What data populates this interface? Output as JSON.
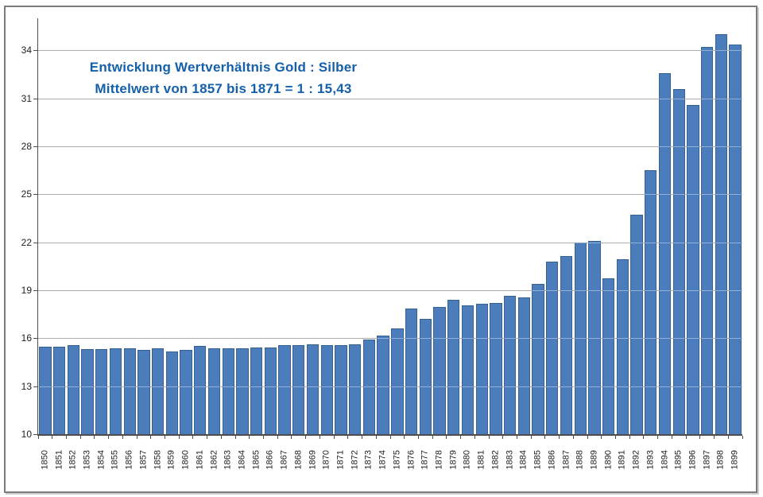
{
  "chart_data": {
    "type": "bar",
    "title_lines": [
      "Entwicklung Wertverhältnis Gold : Silber",
      "Mittelwert von 1857 bis 1871 = 1 : 15,43"
    ],
    "categories": [
      "1850",
      "1851",
      "1852",
      "1853",
      "1854",
      "1855",
      "1856",
      "1857",
      "1858",
      "1859",
      "1860",
      "1861",
      "1862",
      "1863",
      "1864",
      "1865",
      "1866",
      "1867",
      "1868",
      "1869",
      "1870",
      "1871",
      "1872",
      "1873",
      "1874",
      "1875",
      "1876",
      "1877",
      "1878",
      "1879",
      "1880",
      "1881",
      "1882",
      "1883",
      "1884",
      "1885",
      "1886",
      "1887",
      "1888",
      "1889",
      "1890",
      "1891",
      "1892",
      "1893",
      "1894",
      "1895",
      "1896",
      "1897",
      "1898",
      "1899"
    ],
    "values": [
      15.46,
      15.46,
      15.59,
      15.33,
      15.33,
      15.38,
      15.38,
      15.27,
      15.38,
      15.19,
      15.29,
      15.5,
      15.35,
      15.37,
      15.37,
      15.44,
      15.43,
      15.57,
      15.59,
      15.6,
      15.57,
      15.57,
      15.63,
      15.92,
      16.17,
      16.59,
      17.88,
      17.22,
      17.94,
      18.4,
      18.05,
      18.16,
      18.19,
      18.64,
      18.57,
      19.41,
      20.78,
      21.13,
      21.99,
      22.1,
      19.76,
      20.92,
      23.72,
      26.49,
      32.56,
      31.6,
      30.59,
      34.2,
      35.03,
      34.36
    ],
    "xlabel": "",
    "ylabel": "",
    "ylim": [
      10,
      36
    ],
    "yticks": [
      10,
      13,
      16,
      19,
      22,
      25,
      28,
      31,
      34
    ],
    "grid": true,
    "legend": "none",
    "colors": {
      "bar_fill": "#4b7dbd",
      "bar_border": "#38618f",
      "title_text": "#1460aa",
      "gridline": "#767676",
      "axis": "#4d4d4d",
      "tick_label": "#1f1f1f",
      "frame_border": "#7b7b7b"
    }
  }
}
